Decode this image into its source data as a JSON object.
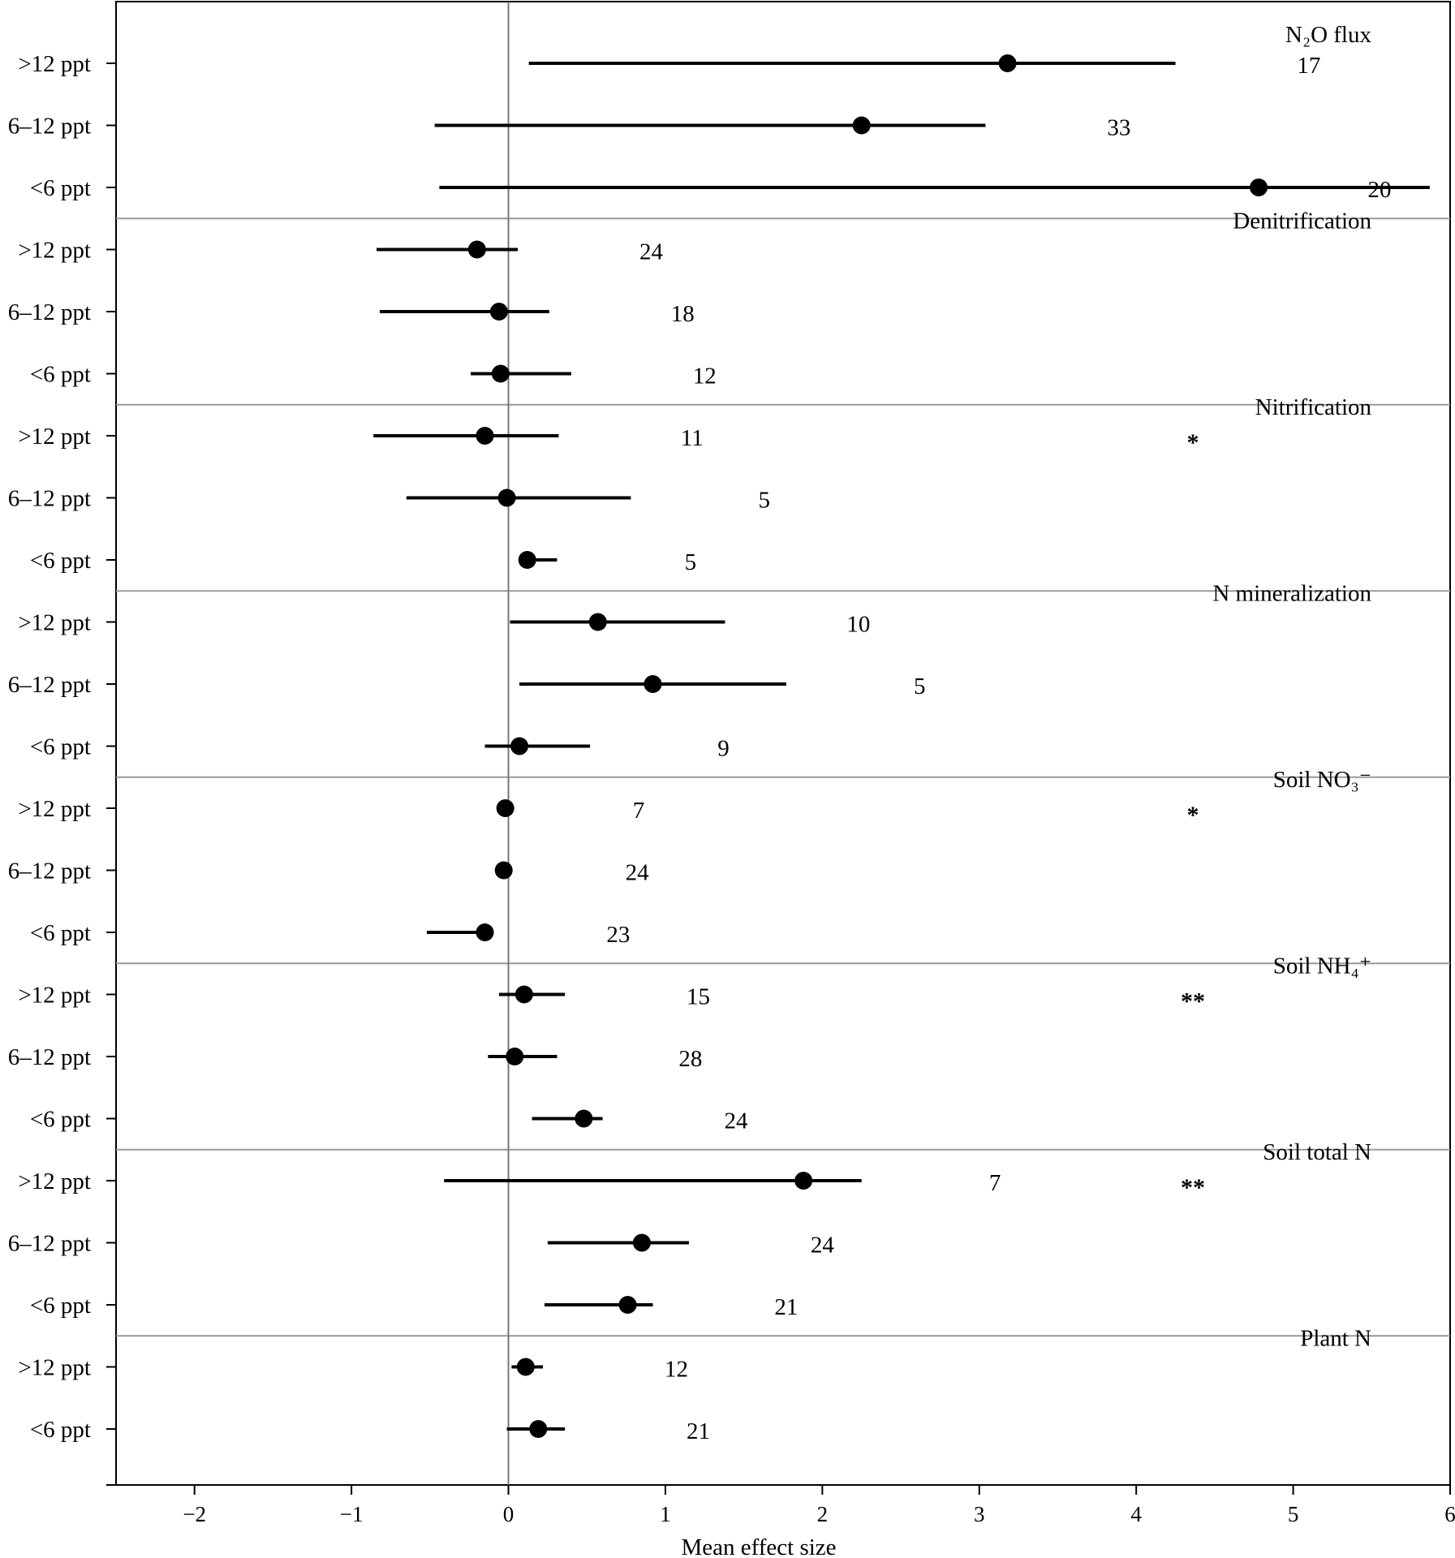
{
  "chart_data": {
    "type": "scatter",
    "xlabel": "Mean effect size",
    "xlim": [
      -2.5,
      6
    ],
    "x_ticks": [
      -2,
      -1,
      0,
      1,
      2,
      3,
      4,
      5,
      6
    ],
    "x_tick_labels": [
      "−2",
      "−1",
      "0",
      "1",
      "2",
      "3",
      "4",
      "5",
      "6"
    ],
    "reference_line_x": 0,
    "panels": [
      {
        "title": "N₂O flux",
        "significance": "",
        "rows": [
          {
            "label": ">12 ppt",
            "mean": 3.18,
            "ci_low": 0.13,
            "ci_high": 4.25,
            "n": "17"
          },
          {
            "label": "6–12 ppt",
            "mean": 2.25,
            "ci_low": -0.47,
            "ci_high": 3.04,
            "n": "33"
          },
          {
            "label": "<6 ppt",
            "mean": 4.78,
            "ci_low": -0.44,
            "ci_high": 5.87,
            "n": "20"
          }
        ]
      },
      {
        "title": "Denitrification",
        "significance": "",
        "rows": [
          {
            "label": ">12 ppt",
            "mean": -0.2,
            "ci_low": -0.84,
            "ci_high": 0.06,
            "n": "24"
          },
          {
            "label": "6–12 ppt",
            "mean": -0.06,
            "ci_low": -0.82,
            "ci_high": 0.26,
            "n": "18"
          },
          {
            "label": "<6 ppt",
            "mean": -0.05,
            "ci_low": -0.24,
            "ci_high": 0.4,
            "n": "12"
          }
        ]
      },
      {
        "title": "Nitrification",
        "significance": "*",
        "rows": [
          {
            "label": ">12 ppt",
            "mean": -0.15,
            "ci_low": -0.86,
            "ci_high": 0.32,
            "n": "11"
          },
          {
            "label": "6–12 ppt",
            "mean": -0.01,
            "ci_low": -0.65,
            "ci_high": 0.78,
            "n": "5"
          },
          {
            "label": "<6 ppt",
            "mean": 0.12,
            "ci_low": 0.08,
            "ci_high": 0.31,
            "n": "5"
          }
        ]
      },
      {
        "title": "N mineralization",
        "significance": "",
        "rows": [
          {
            "label": ">12 ppt",
            "mean": 0.57,
            "ci_low": 0.01,
            "ci_high": 1.38,
            "n": "10"
          },
          {
            "label": "6–12 ppt",
            "mean": 0.92,
            "ci_low": 0.07,
            "ci_high": 1.77,
            "n": "5"
          },
          {
            "label": "<6 ppt",
            "mean": 0.07,
            "ci_low": -0.15,
            "ci_high": 0.52,
            "n": "9"
          }
        ]
      },
      {
        "title": "Soil NO₃⁻",
        "significance": "*",
        "rows": [
          {
            "label": ">12 ppt",
            "mean": -0.02,
            "ci_low": -0.02,
            "ci_high": -0.02,
            "n": "7"
          },
          {
            "label": "6–12 ppt",
            "mean": -0.03,
            "ci_low": -0.03,
            "ci_high": -0.03,
            "n": "24"
          },
          {
            "label": "<6 ppt",
            "mean": -0.15,
            "ci_low": -0.52,
            "ci_high": -0.15,
            "n": "23"
          }
        ]
      },
      {
        "title": "Soil NH₄⁺",
        "significance": "**",
        "rows": [
          {
            "label": ">12 ppt",
            "mean": 0.1,
            "ci_low": -0.06,
            "ci_high": 0.36,
            "n": "15"
          },
          {
            "label": "6–12 ppt",
            "mean": 0.04,
            "ci_low": -0.13,
            "ci_high": 0.31,
            "n": "28"
          },
          {
            "label": "<6 ppt",
            "mean": 0.48,
            "ci_low": 0.15,
            "ci_high": 0.6,
            "n": "24"
          }
        ]
      },
      {
        "title": "Soil total N",
        "significance": "**",
        "rows": [
          {
            "label": ">12 ppt",
            "mean": 1.88,
            "ci_low": -0.41,
            "ci_high": 2.25,
            "n": "7"
          },
          {
            "label": "6–12 ppt",
            "mean": 0.85,
            "ci_low": 0.25,
            "ci_high": 1.15,
            "n": "24"
          },
          {
            "label": "<6 ppt",
            "mean": 0.76,
            "ci_low": 0.23,
            "ci_high": 0.92,
            "n": "21"
          }
        ]
      },
      {
        "title": "Plant N",
        "significance": "",
        "rows": [
          {
            "label": ">12 ppt",
            "mean": 0.11,
            "ci_low": 0.02,
            "ci_high": 0.22,
            "n": "12"
          },
          {
            "label": "<6 ppt",
            "mean": 0.19,
            "ci_low": -0.01,
            "ci_high": 0.36,
            "n": "21"
          }
        ]
      }
    ]
  }
}
